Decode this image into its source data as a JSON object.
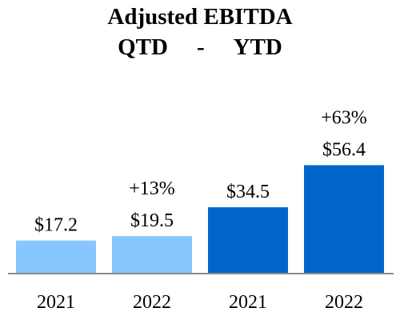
{
  "title": {
    "line1": "Adjusted EBITDA",
    "left": "QTD",
    "separator": "-",
    "right": "YTD"
  },
  "colors": {
    "qtd": "#87C6FF",
    "ytd": "#0066CC",
    "axis": "#8C8C8C"
  },
  "chart_data": {
    "type": "bar",
    "categories": [
      "2021",
      "2022",
      "2021",
      "2022"
    ],
    "groups": [
      "QTD",
      "QTD",
      "YTD",
      "YTD"
    ],
    "values": [
      17.2,
      19.5,
      34.5,
      56.4
    ],
    "value_labels": [
      "$17.2",
      "$19.5",
      "$34.5",
      "$56.4"
    ],
    "change_labels": [
      "",
      "+13%",
      "",
      "+63%"
    ],
    "title": "Adjusted EBITDA",
    "xlabel": "",
    "ylabel": "",
    "ylim": [
      0,
      70
    ],
    "grid": false,
    "legend": "none"
  }
}
